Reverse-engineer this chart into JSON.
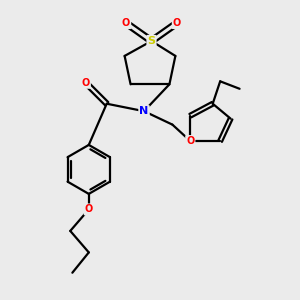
{
  "bg_color": "#ebebeb",
  "S_color": "#cccc00",
  "O_color": "#ff0000",
  "N_color": "#0000ff",
  "C_color": "#000000",
  "bond_color": "#000000",
  "bond_lw": 1.6,
  "font_size": 8.0,
  "figsize": [
    3.0,
    3.0
  ],
  "dpi": 100,
  "xlim": [
    0,
    10
  ],
  "ylim": [
    0,
    10
  ]
}
